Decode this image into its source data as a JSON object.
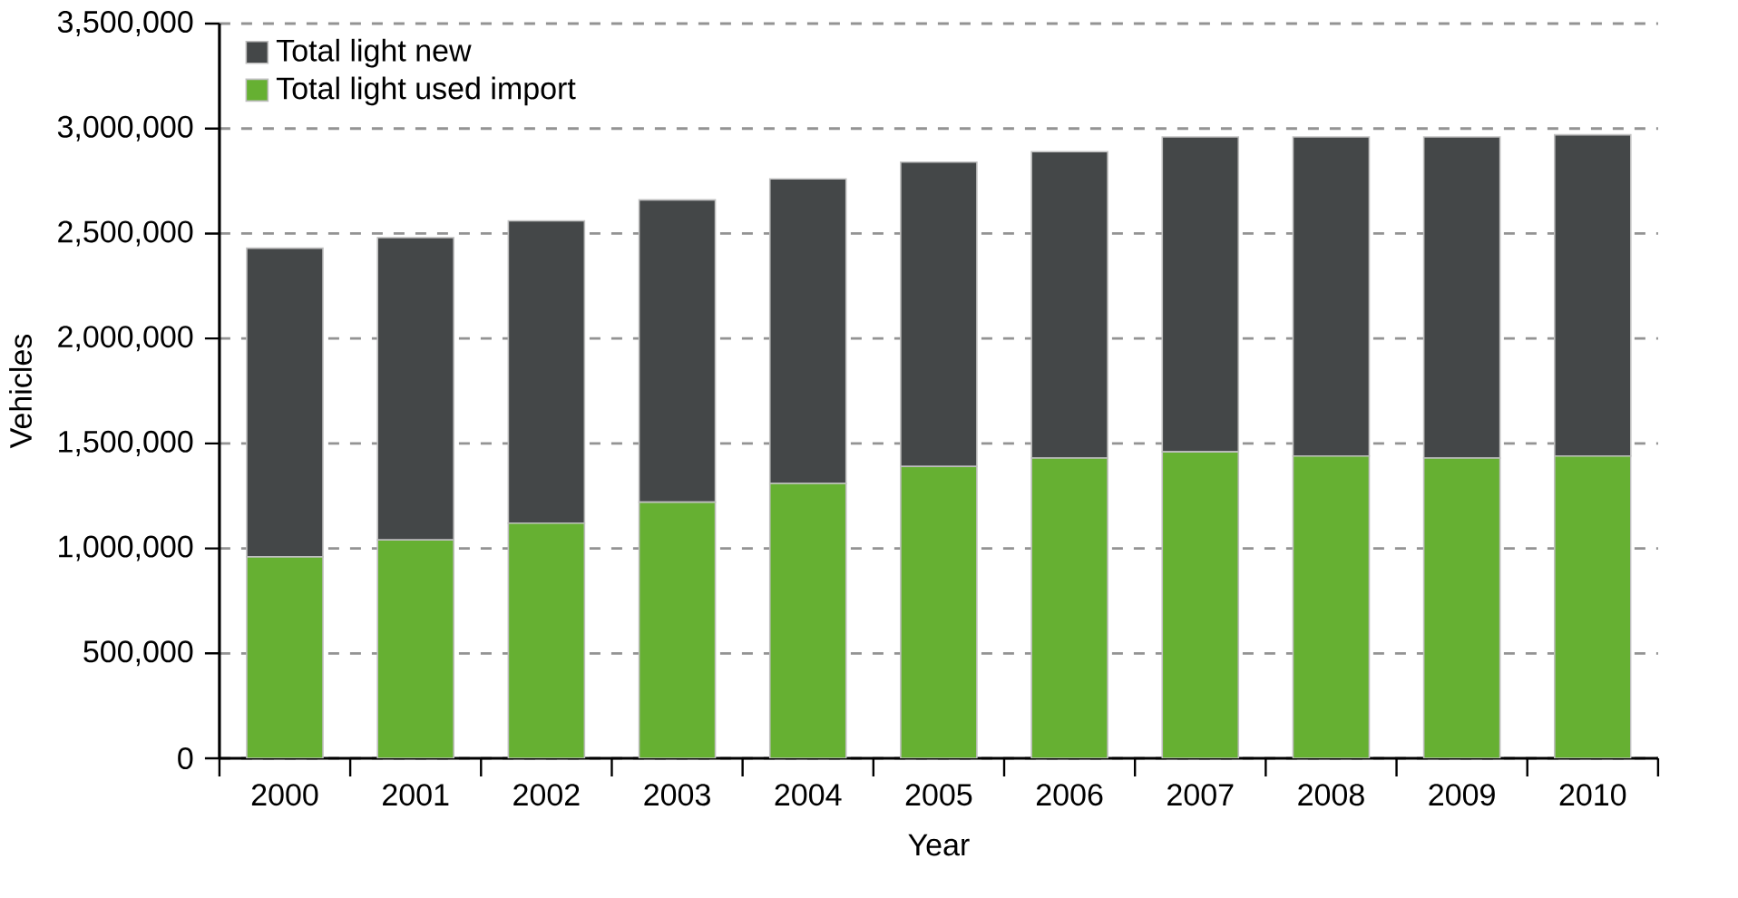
{
  "chart_data": {
    "type": "bar",
    "stacked": true,
    "xlabel": "Year",
    "ylabel": "Vehicles",
    "categories": [
      "2000",
      "2001",
      "2002",
      "2003",
      "2004",
      "2005",
      "2006",
      "2007",
      "2008",
      "2009",
      "2010"
    ],
    "series": [
      {
        "name": "Total light used import",
        "color": "#66b032",
        "values": [
          960000,
          1040000,
          1120000,
          1220000,
          1310000,
          1390000,
          1430000,
          1460000,
          1440000,
          1430000,
          1440000
        ]
      },
      {
        "name": "Total light new",
        "color": "#444748",
        "values": [
          1470000,
          1440000,
          1440000,
          1440000,
          1450000,
          1450000,
          1460000,
          1500000,
          1520000,
          1530000,
          1530000
        ]
      }
    ],
    "ylim": [
      0,
      3500000
    ],
    "yticks": [
      0,
      {
        "value": 500000,
        "label": "500,000"
      },
      {
        "value": 1000000,
        "label": "1,000,000"
      },
      {
        "value": 1500000,
        "label": "1,500,000"
      },
      {
        "value": 2000000,
        "label": "2,000,000"
      },
      {
        "value": 2500000,
        "label": "2,500,000"
      },
      {
        "value": 3000000,
        "label": "3,000,000"
      },
      {
        "value": 3500000,
        "label": "3,500,000"
      }
    ],
    "grid": "y",
    "legend": "top left"
  }
}
